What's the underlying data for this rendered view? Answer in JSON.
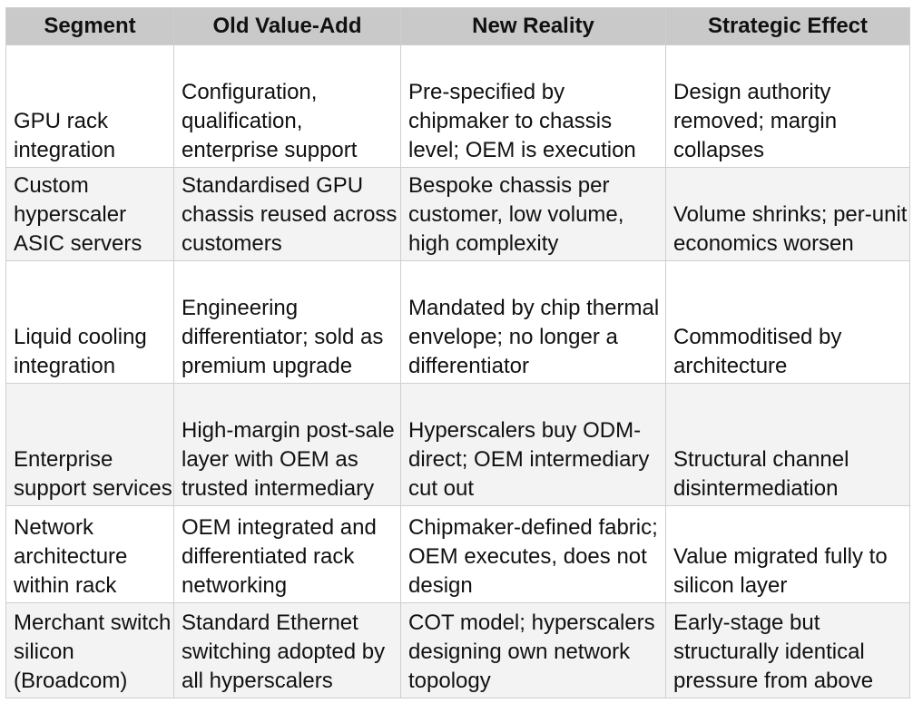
{
  "table": {
    "headers": [
      "Segment",
      "Old Value-Add",
      "New Reality",
      "Strategic Effect"
    ],
    "rows": [
      [
        "GPU rack integration",
        "Configuration, qualification, enterprise support",
        "Pre-specified by chipmaker to chassis level; OEM is execution",
        "Design authority removed; margin collapses"
      ],
      [
        "Custom hyperscaler ASIC servers",
        "Standardised GPU chassis reused across customers",
        "Bespoke chassis per customer, low volume, high complexity",
        "Volume shrinks; per-unit economics worsen"
      ],
      [
        "Liquid cooling integration",
        "Engineering differentiator; sold as premium upgrade",
        "Mandated by chip thermal envelope; no longer a differentiator",
        "Commoditised by architecture"
      ],
      [
        "Enterprise support services",
        "High-margin post-sale layer with OEM as trusted intermediary",
        "Hyperscalers buy ODM-direct; OEM intermediary cut out",
        "Structural channel disintermediation"
      ],
      [
        "Network architecture within rack",
        "OEM integrated and differentiated rack networking",
        "Chipmaker-defined fabric; OEM executes, does not design",
        "Value migrated fully to silicon layer"
      ],
      [
        "Merchant switch silicon (Broadcom)",
        "Standard Ethernet switching adopted by all hyperscalers",
        "COT model; hyperscalers designing own network topology",
        "Early-stage but structurally identical pressure from above"
      ]
    ]
  },
  "colors": {
    "header_bg": "#c9c9c9",
    "alt_row_bg": "#f3f3f3",
    "grid": "#cfcfcf"
  }
}
